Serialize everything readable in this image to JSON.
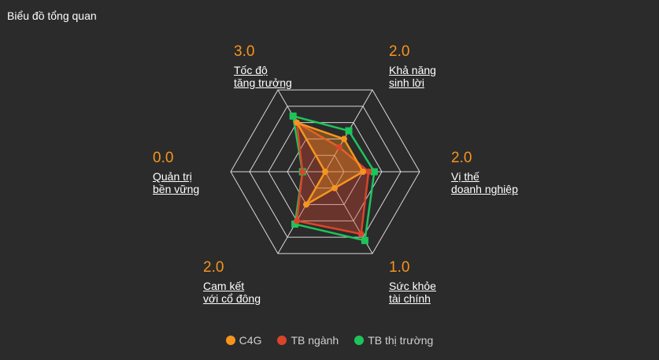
{
  "title": "Biểu đồ tổng quan",
  "chart_data": {
    "type": "radar",
    "axes": [
      {
        "name_lines": [
          "Tốc độ",
          "tăng trưởng"
        ],
        "score": "3.0"
      },
      {
        "name_lines": [
          "Khả năng",
          "sinh lời"
        ],
        "score": "2.0"
      },
      {
        "name_lines": [
          "Vị thế",
          "doanh nghiệp"
        ],
        "score": "2.0"
      },
      {
        "name_lines": [
          "Sức khỏe",
          "tài chính"
        ],
        "score": "1.0"
      },
      {
        "name_lines": [
          "Cam kết",
          "với cổ đông"
        ],
        "score": "2.0"
      },
      {
        "name_lines": [
          "Quản trị",
          "bền vững"
        ],
        "score": "0.0"
      }
    ],
    "rlim": [
      0,
      5
    ],
    "grid_levels": 5,
    "series": [
      {
        "name": "C4G",
        "color": "#f7941d",
        "marker": "circle",
        "values": [
          3.0,
          2.0,
          2.0,
          1.0,
          2.0,
          0.0
        ]
      },
      {
        "name": "TB ngành",
        "color": "#d9452b",
        "marker": "circle",
        "values": [
          3.0,
          1.5,
          2.3,
          3.8,
          3.0,
          1.2
        ]
      },
      {
        "name": "TB thị trường",
        "color": "#1ec45a",
        "marker": "square",
        "values": [
          3.4,
          2.5,
          2.6,
          4.2,
          3.2,
          1.2
        ]
      }
    ],
    "grid": true,
    "legend_position": "bottom-center"
  }
}
